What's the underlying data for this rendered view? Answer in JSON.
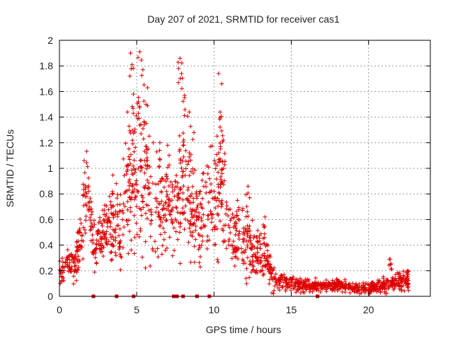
{
  "chart_data": {
    "type": "scatter",
    "title": "Day 207 of 2021, SRMTID for receiver cas1",
    "xlabel": "GPS time / hours",
    "ylabel": "SRMTID / TECUs",
    "xlim": [
      0,
      24
    ],
    "ylim": [
      0,
      2
    ],
    "x_ticks": [
      0,
      5,
      10,
      15,
      20
    ],
    "x_tick_labels": [
      "0",
      "5",
      "10",
      "15",
      "20"
    ],
    "y_ticks": [
      0,
      0.2,
      0.4,
      0.6,
      0.8,
      1,
      1.2,
      1.4,
      1.6,
      1.8,
      2
    ],
    "y_tick_labels": [
      "0",
      "0.2",
      "0.4",
      "0.6",
      "0.8",
      "1",
      "1.2",
      "1.4",
      "1.6",
      "1.8",
      "2"
    ],
    "grid": true,
    "marker": "+",
    "color": "#dd0000",
    "series": [
      {
        "name": "SRMTID",
        "description": "dense scatter; values approximated from the plot envelope",
        "envelope": [
          {
            "x": 0.0,
            "base": 0.2,
            "spread": 0.1
          },
          {
            "x": 0.5,
            "base": 0.25,
            "spread": 0.1
          },
          {
            "x": 1.0,
            "base": 0.25,
            "spread": 0.1
          },
          {
            "x": 1.5,
            "base": 0.5,
            "spread": 0.18
          },
          {
            "x": 1.8,
            "base": 0.85,
            "spread": 0.2
          },
          {
            "x": 2.2,
            "base": 0.4,
            "spread": 0.15
          },
          {
            "x": 3.0,
            "base": 0.5,
            "spread": 0.2
          },
          {
            "x": 4.0,
            "base": 0.6,
            "spread": 0.3
          },
          {
            "x": 4.8,
            "base": 0.95,
            "spread": 0.45
          },
          {
            "x": 5.5,
            "base": 0.85,
            "spread": 0.45
          },
          {
            "x": 6.5,
            "base": 0.6,
            "spread": 0.3
          },
          {
            "x": 7.3,
            "base": 0.7,
            "spread": 0.3
          },
          {
            "x": 8.0,
            "base": 0.8,
            "spread": 0.35
          },
          {
            "x": 9.0,
            "base": 0.6,
            "spread": 0.3
          },
          {
            "x": 10.3,
            "base": 0.8,
            "spread": 0.35
          },
          {
            "x": 11.0,
            "base": 0.5,
            "spread": 0.2
          },
          {
            "x": 12.0,
            "base": 0.4,
            "spread": 0.2
          },
          {
            "x": 13.2,
            "base": 0.3,
            "spread": 0.15
          },
          {
            "x": 14.0,
            "base": 0.13,
            "spread": 0.06
          },
          {
            "x": 16.0,
            "base": 0.08,
            "spread": 0.04
          },
          {
            "x": 18.0,
            "base": 0.09,
            "spread": 0.04
          },
          {
            "x": 20.0,
            "base": 0.06,
            "spread": 0.03
          },
          {
            "x": 22.0,
            "base": 0.12,
            "spread": 0.06
          },
          {
            "x": 22.6,
            "base": 0.09,
            "spread": 0.05
          }
        ],
        "peaks": [
          {
            "x": 1.6,
            "y": 1.06
          },
          {
            "x": 4.4,
            "y": 1.44
          },
          {
            "x": 4.6,
            "y": 1.9
          },
          {
            "x": 4.7,
            "y": 1.81
          },
          {
            "x": 5.2,
            "y": 1.91
          },
          {
            "x": 5.4,
            "y": 1.77
          },
          {
            "x": 5.7,
            "y": 1.63
          },
          {
            "x": 5.6,
            "y": 1.5
          },
          {
            "x": 6.5,
            "y": 1.2
          },
          {
            "x": 7.0,
            "y": 1.18
          },
          {
            "x": 7.8,
            "y": 1.86
          },
          {
            "x": 7.9,
            "y": 1.74
          },
          {
            "x": 8.1,
            "y": 1.57
          },
          {
            "x": 8.4,
            "y": 1.44
          },
          {
            "x": 8.7,
            "y": 1.28
          },
          {
            "x": 10.3,
            "y": 1.74
          },
          {
            "x": 10.5,
            "y": 1.66
          },
          {
            "x": 10.4,
            "y": 1.44
          },
          {
            "x": 10.6,
            "y": 1.22
          },
          {
            "x": 12.2,
            "y": 0.86
          },
          {
            "x": 13.3,
            "y": 0.62
          },
          {
            "x": 21.4,
            "y": 0.29
          },
          {
            "x": 22.5,
            "y": 0.2
          }
        ],
        "zero_markers_x": [
          2.2,
          3.7,
          4.8,
          7.4,
          7.6,
          8.0,
          8.9,
          9.7,
          16.7
        ]
      }
    ]
  }
}
